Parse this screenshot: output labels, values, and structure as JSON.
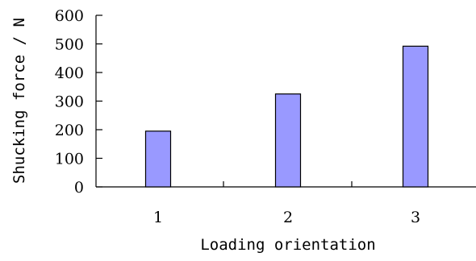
{
  "chart_data": {
    "type": "bar",
    "title": "",
    "xlabel": "Loading orientation",
    "ylabel": "Shucking force / N",
    "categories": [
      "1",
      "2",
      "3"
    ],
    "values": [
      195,
      325,
      492
    ],
    "ylim": [
      0,
      600
    ],
    "yticks": [
      0,
      100,
      200,
      300,
      400,
      500,
      600
    ],
    "grid": false,
    "legend": "none",
    "bar_color": "#9999ff",
    "bar_edge_color": "#000000"
  }
}
